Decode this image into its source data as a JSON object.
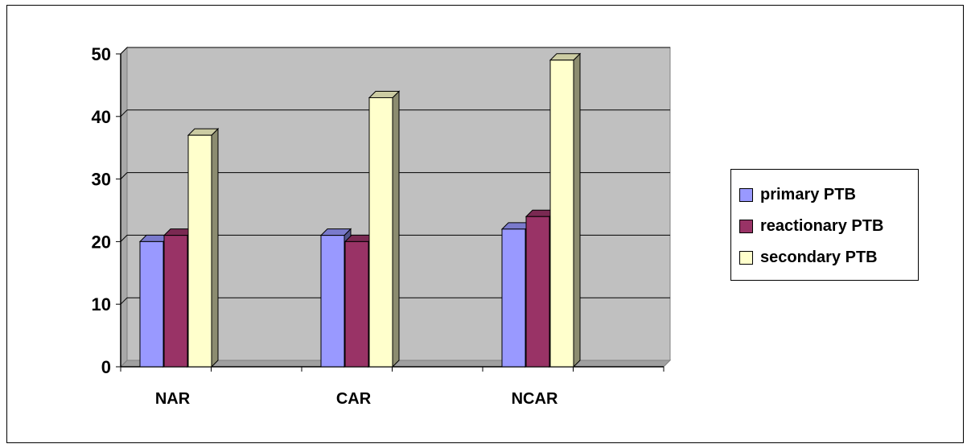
{
  "chart_data": {
    "type": "bar",
    "categories": [
      "NAR",
      "CAR",
      "NCAR"
    ],
    "series": [
      {
        "name": "primary PTB",
        "values": [
          20,
          21,
          22
        ],
        "color": "#9999ff"
      },
      {
        "name": "reactionary PTB",
        "values": [
          21,
          20,
          24
        ],
        "color": "#993366"
      },
      {
        "name": "secondary PTB",
        "values": [
          37,
          43,
          49
        ],
        "color": "#ffffcc"
      }
    ],
    "ylim": [
      0,
      50
    ],
    "yticks": [
      0,
      10,
      20,
      30,
      40,
      50
    ],
    "grid": true,
    "legend_position": "right",
    "style": "3d",
    "plot_background": "#c0c0c0"
  }
}
